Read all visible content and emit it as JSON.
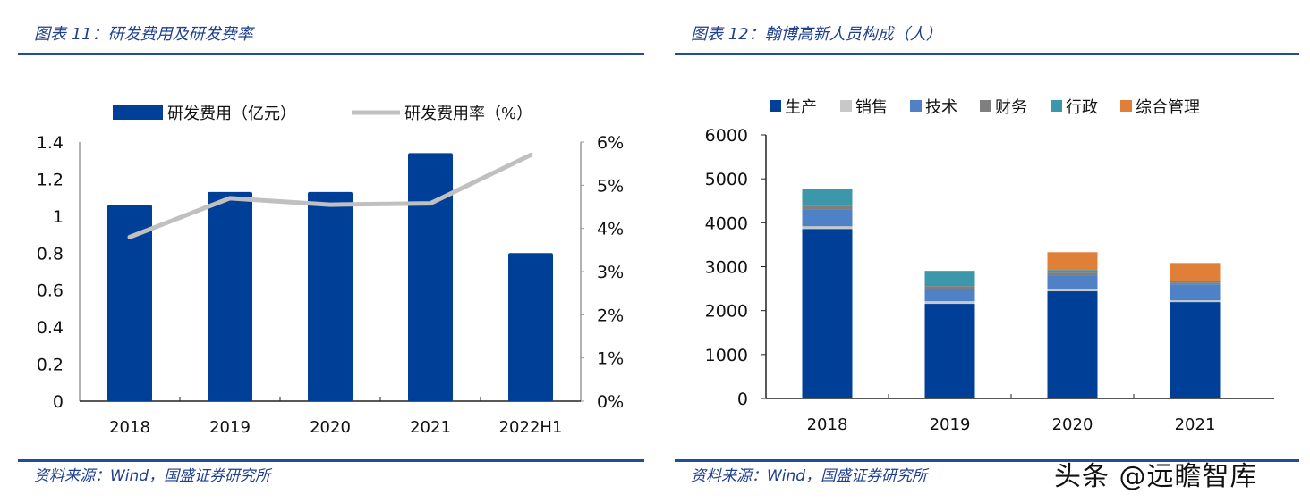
{
  "left": {
    "title": "图表 11：研发费用及研发费率",
    "source": "资料来源：Wind，国盛证券研究所"
  },
  "right": {
    "title": "图表 12：翰博高新人员构成（人）",
    "source": "资料来源：Wind，国盛证券研究所"
  },
  "watermark": "头条 @远瞻智库",
  "chart_data": [
    {
      "type": "bar+line",
      "categories": [
        "2018",
        "2019",
        "2020",
        "2021",
        "2022H1"
      ],
      "series": [
        {
          "name": "研发费用（亿元）",
          "type": "bar",
          "axis": "left",
          "color": "#003f98",
          "values": [
            1.06,
            1.13,
            1.13,
            1.34,
            0.8
          ]
        },
        {
          "name": "研发费用率（%）",
          "type": "line",
          "axis": "right",
          "color": "#c0c0c0",
          "values": [
            3.8,
            4.7,
            4.55,
            4.58,
            5.7
          ]
        }
      ],
      "y_left": {
        "range": [
          0,
          1.4
        ],
        "ticks": [
          "0",
          "0.2",
          "0.4",
          "0.6",
          "0.8",
          "1",
          "1.2",
          "1.4"
        ]
      },
      "y_right": {
        "range": [
          0,
          6
        ],
        "ticks": [
          "0%",
          "1%",
          "2%",
          "3%",
          "4%",
          "5%",
          "6%"
        ]
      },
      "legend": "top",
      "grid": false
    },
    {
      "type": "stacked-bar",
      "categories": [
        "2018",
        "2019",
        "2020",
        "2021"
      ],
      "series": [
        {
          "name": "生产",
          "color": "#003f98",
          "values": [
            3860,
            2155,
            2440,
            2195
          ]
        },
        {
          "name": "销售",
          "color": "#c8c8c8",
          "values": [
            60,
            60,
            60,
            40
          ]
        },
        {
          "name": "技术",
          "color": "#4f81c7",
          "values": [
            390,
            285,
            305,
            365
          ]
        },
        {
          "name": "财务",
          "color": "#7f7f7f",
          "values": [
            80,
            60,
            60,
            40
          ]
        },
        {
          "name": "行政",
          "color": "#3d97ab",
          "values": [
            390,
            345,
            60,
            40
          ]
        },
        {
          "name": "综合管理",
          "color": "#e07f38",
          "values": [
            0,
            0,
            405,
            405
          ]
        }
      ],
      "y": {
        "range": [
          0,
          6000
        ],
        "ticks": [
          "0",
          "1000",
          "2000",
          "3000",
          "4000",
          "5000",
          "6000"
        ]
      },
      "legend": "top",
      "grid": false
    }
  ]
}
